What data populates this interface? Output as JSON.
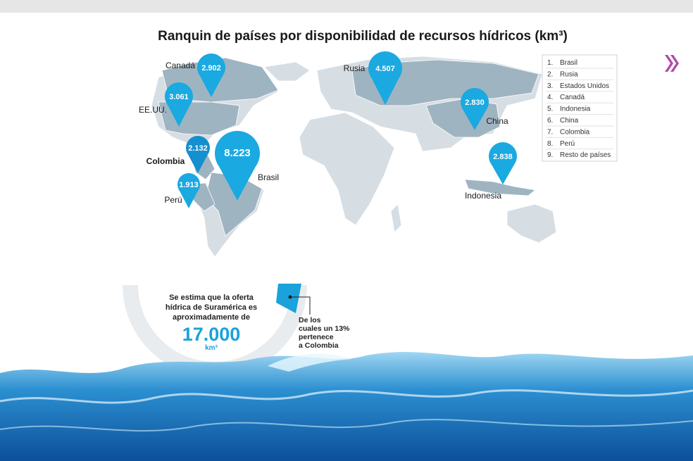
{
  "header": {
    "title": "Ranquin de países por disponibilidad de recursos hídricos (km³)"
  },
  "pins": [
    {
      "country": "Canadá",
      "value": "2.902"
    },
    {
      "country": "EE.UU.",
      "value": "3.061"
    },
    {
      "country": "Colombia",
      "value": "2.132"
    },
    {
      "country": "Brasil",
      "value": "8.223"
    },
    {
      "country": "Perú",
      "value": "1.913"
    },
    {
      "country": "Rusia",
      "value": "4.507"
    },
    {
      "country": "China",
      "value": "2.830"
    },
    {
      "country": "Indonesia",
      "value": "2.838"
    }
  ],
  "ranking": [
    "1.",
    "Brasil",
    "2.",
    "Rusia",
    "3.",
    "Estados Unidos",
    "4.",
    "Canadá",
    "5.",
    "Indonesia",
    "6.",
    "China",
    "7.",
    "Colombia",
    "8.",
    "Perú",
    "9.",
    "Resto de países"
  ],
  "callout": {
    "lines": [
      "Se estima que la oferta",
      "hídrica de Suramérica es",
      "aproximadamente de"
    ],
    "amount": "17.000",
    "unit": "km³",
    "note": [
      "De los",
      "cuales un 13%",
      "pertenece",
      "a Colombia"
    ]
  }
}
